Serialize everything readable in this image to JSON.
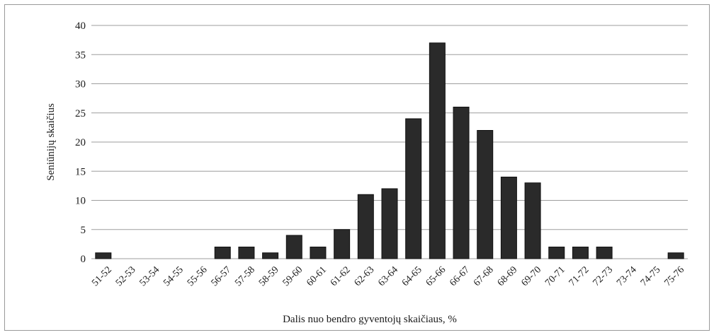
{
  "chart_data": {
    "type": "bar",
    "title": "",
    "xlabel": "Dalis nuo bendro gyventojų skaičiaus, %",
    "ylabel": "Seniūnijų skaičius",
    "ylim": [
      0,
      40
    ],
    "yticks": [
      "0",
      "5",
      "10",
      "15",
      "20",
      "25",
      "30",
      "35",
      "40"
    ],
    "grid": true,
    "legend": "none",
    "categories": [
      "51-52",
      "52-53",
      "53-54",
      "54-55",
      "55-56",
      "56-57",
      "57-58",
      "58-59",
      "59-60",
      "60-61",
      "61-62",
      "62-63",
      "63-64",
      "64-65",
      "65-66",
      "66-67",
      "67-68",
      "68-69",
      "69-70",
      "70-71",
      "71-72",
      "72-73",
      "73-74",
      "74-75",
      "75-76"
    ],
    "values": [
      1,
      0,
      0,
      0,
      0,
      2,
      2,
      1,
      4,
      2,
      5,
      11,
      12,
      24,
      37,
      26,
      22,
      14,
      13,
      2,
      2,
      2,
      0,
      0,
      1
    ],
    "colors": {
      "bar": "#2a2a2a",
      "grid": "#9e9e9e",
      "border": "#9a9a9a"
    }
  }
}
